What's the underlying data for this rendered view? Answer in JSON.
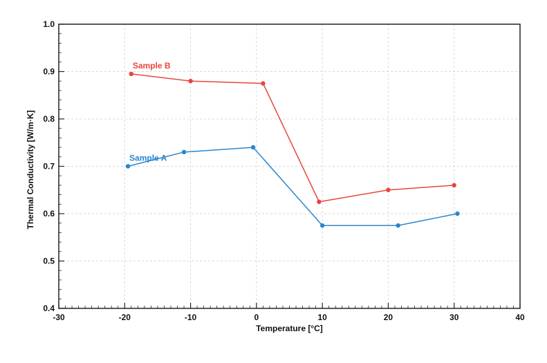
{
  "chart_data": {
    "type": "line",
    "title": "",
    "xlabel": "Temperature [°C]",
    "ylabel": "Thermal Conductivity [W/m·K]",
    "xlim": [
      -30,
      40
    ],
    "ylim": [
      0.4,
      1.0
    ],
    "x_ticks": [
      -30,
      -20,
      -10,
      0,
      10,
      20,
      30,
      40
    ],
    "x_tick_labels": [
      "-30",
      "-20",
      "-10",
      "0",
      "10",
      "20",
      "30",
      "40"
    ],
    "y_ticks": [
      0.4,
      0.5,
      0.6,
      0.7,
      0.8,
      0.9,
      1.0
    ],
    "y_tick_labels": [
      "0.4",
      "0.5",
      "0.6",
      "0.7",
      "0.8",
      "0.9",
      "1.0"
    ],
    "grid": true,
    "legend": "inline labels",
    "series": [
      {
        "name": "Sample A",
        "color": "#2a86cc",
        "x": [
          -19.5,
          -11,
          -0.5,
          10,
          21.5,
          30.5
        ],
        "y": [
          0.7,
          0.73,
          0.74,
          0.575,
          0.575,
          0.6
        ]
      },
      {
        "name": "Sample B",
        "color": "#e8453c",
        "x": [
          -19,
          -10,
          1,
          9.5,
          20,
          30
        ],
        "y": [
          0.895,
          0.88,
          0.875,
          0.625,
          0.65,
          0.66
        ]
      }
    ]
  }
}
